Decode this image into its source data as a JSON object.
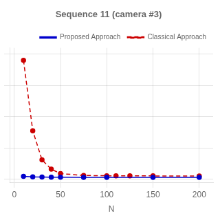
{
  "chart_data": {
    "type": "line",
    "title": "Sequence 11 (camera #3)",
    "xlabel": "N",
    "series": [
      {
        "name": "Classical Approach",
        "color": "#cc0000",
        "line_style": "dashed",
        "marker": "circle",
        "x": [
          10,
          20,
          30,
          40,
          50,
          75,
          100,
          110,
          125,
          150,
          200
        ],
        "values": [
          3.8,
          1.55,
          0.62,
          0.32,
          0.18,
          0.12,
          0.11,
          0.105,
          0.105,
          0.105,
          0.104
        ]
      },
      {
        "name": "Proposed Approach",
        "color": "#0000cc",
        "line_style": "solid",
        "marker": "circle",
        "x": [
          10,
          20,
          30,
          40,
          50,
          75,
          100,
          150,
          200
        ],
        "values": [
          0.09,
          0.075,
          0.068,
          0.065,
          0.062,
          0.06,
          0.058,
          0.058,
          0.058
        ]
      }
    ],
    "xlim": [
      -5,
      215
    ],
    "xticks": [
      0,
      50,
      100,
      150,
      200
    ],
    "ylim": [
      -0.1,
      4.2
    ],
    "yticks": [
      0,
      1,
      2,
      3,
      4
    ],
    "tick_labels": "x",
    "grid": true,
    "legend": "upper right"
  }
}
